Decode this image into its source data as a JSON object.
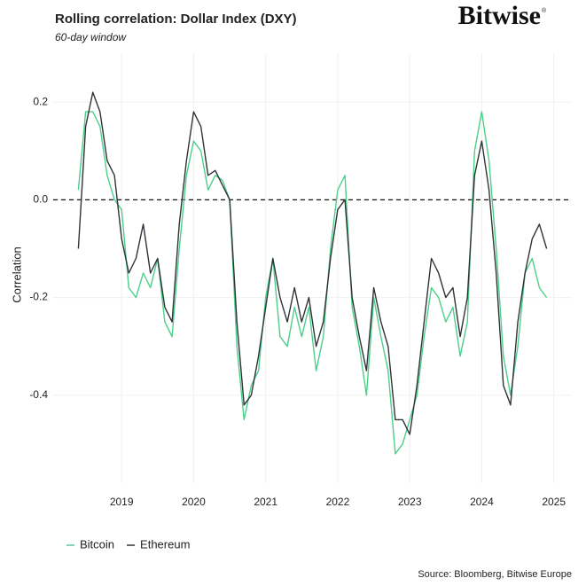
{
  "chart_data": {
    "type": "line",
    "title": "Rolling correlation: Dollar Index (DXY)",
    "subtitle": "60-day window",
    "y_label": "Correlation",
    "source": "Source: Bloomberg, Bitwise Europe",
    "logo": "Bitwise",
    "logo_mark": "®",
    "x": [
      2018.4,
      2018.5,
      2018.6,
      2018.7,
      2018.8,
      2018.9,
      2019.0,
      2019.1,
      2019.2,
      2019.3,
      2019.4,
      2019.5,
      2019.6,
      2019.7,
      2019.8,
      2019.9,
      2020.0,
      2020.1,
      2020.2,
      2020.3,
      2020.4,
      2020.5,
      2020.6,
      2020.7,
      2020.8,
      2020.9,
      2021.0,
      2021.1,
      2021.2,
      2021.3,
      2021.4,
      2021.5,
      2021.6,
      2021.7,
      2021.8,
      2021.9,
      2022.0,
      2022.1,
      2022.2,
      2022.3,
      2022.4,
      2022.5,
      2022.6,
      2022.7,
      2022.8,
      2022.9,
      2023.0,
      2023.1,
      2023.2,
      2023.3,
      2023.4,
      2023.5,
      2023.6,
      2023.7,
      2023.8,
      2023.9,
      2024.0,
      2024.1,
      2024.2,
      2024.3,
      2024.4,
      2024.5,
      2024.6,
      2024.7,
      2024.8,
      2024.9
    ],
    "series": [
      {
        "name": "Bitcoin",
        "color": "#4ccf8a",
        "values": [
          0.02,
          0.18,
          0.18,
          0.15,
          0.05,
          0.0,
          -0.02,
          -0.18,
          -0.2,
          -0.15,
          -0.18,
          -0.12,
          -0.25,
          -0.28,
          -0.1,
          0.05,
          0.12,
          0.1,
          0.02,
          0.05,
          0.04,
          0.0,
          -0.3,
          -0.45,
          -0.38,
          -0.35,
          -0.2,
          -0.12,
          -0.28,
          -0.3,
          -0.22,
          -0.28,
          -0.22,
          -0.35,
          -0.28,
          -0.1,
          0.02,
          0.05,
          -0.22,
          -0.3,
          -0.4,
          -0.2,
          -0.28,
          -0.35,
          -0.52,
          -0.5,
          -0.45,
          -0.4,
          -0.28,
          -0.18,
          -0.2,
          -0.25,
          -0.22,
          -0.32,
          -0.25,
          0.1,
          0.18,
          0.08,
          -0.1,
          -0.32,
          -0.4,
          -0.3,
          -0.15,
          -0.12,
          -0.18,
          -0.2
        ]
      },
      {
        "name": "Ethereum",
        "color": "#2e3338",
        "values": [
          -0.1,
          0.15,
          0.22,
          0.18,
          0.08,
          0.05,
          -0.08,
          -0.15,
          -0.12,
          -0.05,
          -0.15,
          -0.12,
          -0.22,
          -0.25,
          -0.05,
          0.08,
          0.18,
          0.15,
          0.05,
          0.06,
          0.03,
          0.0,
          -0.25,
          -0.42,
          -0.4,
          -0.32,
          -0.22,
          -0.12,
          -0.2,
          -0.25,
          -0.18,
          -0.25,
          -0.2,
          -0.3,
          -0.25,
          -0.12,
          -0.02,
          0.0,
          -0.2,
          -0.28,
          -0.35,
          -0.18,
          -0.25,
          -0.3,
          -0.45,
          -0.45,
          -0.48,
          -0.38,
          -0.25,
          -0.12,
          -0.15,
          -0.2,
          -0.18,
          -0.28,
          -0.2,
          0.05,
          0.12,
          0.02,
          -0.15,
          -0.38,
          -0.42,
          -0.25,
          -0.15,
          -0.08,
          -0.05,
          -0.1
        ]
      }
    ],
    "xlim": [
      2018.05,
      2025.25
    ],
    "xticks": [
      2019,
      2020,
      2021,
      2022,
      2023,
      2024,
      2025
    ],
    "ylim": [
      -0.58,
      0.3
    ],
    "yticks": [
      -0.4,
      -0.2,
      {
        "value": 0,
        "label": "0.0"
      },
      0.2
    ],
    "hline": 0,
    "grid": true,
    "legend": "bottom-left"
  }
}
